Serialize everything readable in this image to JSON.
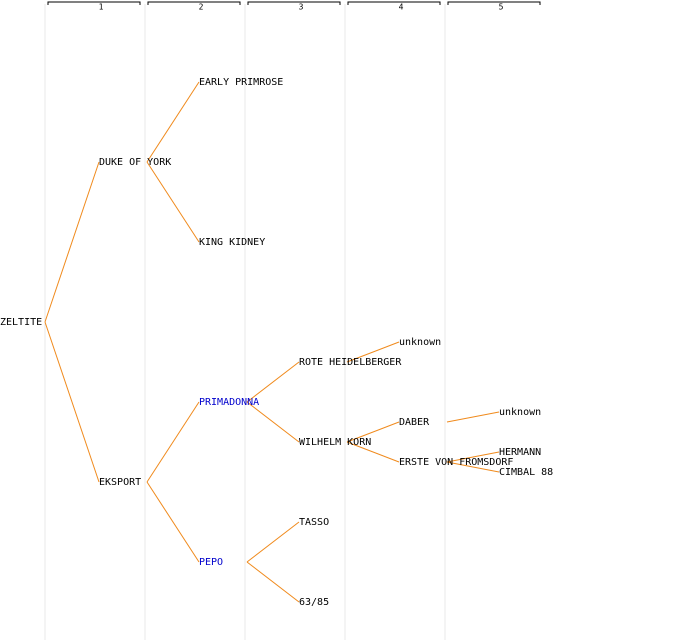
{
  "columns": [
    "1",
    "2",
    "3",
    "4",
    "5"
  ],
  "nodes": [
    "ZELTITE",
    "DUKE OF YORK",
    "EKSPORT",
    "EARLY PRIMROSE",
    "KING KIDNEY",
    "PRIMADONNA",
    "PEPO",
    "ROTE HEIDELBERGER",
    "WILHELM KORN",
    "TASSO",
    "63/85",
    "unknown",
    "DABER",
    "ERSTE VON FROMSDORF",
    "unknown",
    "HERMANN",
    "CIMBAL 88"
  ]
}
